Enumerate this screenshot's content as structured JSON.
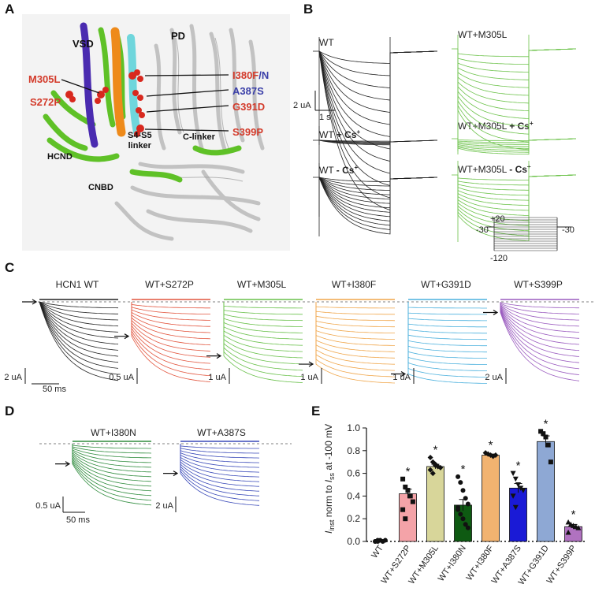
{
  "panels": {
    "A": "A",
    "B": "B",
    "C": "C",
    "D": "D",
    "E": "E"
  },
  "structure": {
    "vsd": "VSD",
    "pd": "PD",
    "hcnd": "HCND",
    "cnbd": "CNBD",
    "c_linker": "C-linker",
    "s4s5_line1": "S4-S5",
    "s4s5_line2": "linker",
    "mutations": {
      "m305l": "M305L",
      "s272p": "S272P",
      "i380": "I380F",
      "i380_slash": "/",
      "i380_n": "N",
      "a387s": "A387S",
      "g391d": "G391D",
      "s399p": "S399P"
    },
    "colors": {
      "helix_green": "#5fc127",
      "s4_orange": "#ee8a1a",
      "s4_cyan": "#6fd6dc",
      "vsd_purple": "#4a2bb0",
      "grey": "#c8c8c8",
      "atoms": "#d8281e"
    }
  },
  "panel_b": {
    "wt": "WT",
    "wt_cs_main": "WT ",
    "wt_cs_ion": "+ Cs",
    "wt_minus_main": "WT ",
    "wt_minus_ion": "- Cs",
    "sup": "+",
    "m305l": "WT+M305L",
    "m305l_cs_main": "WT+M305L ",
    "m305l_cs_ion": "+ Cs",
    "m305l_minus_main": "WT+M305L ",
    "m305l_minus_ion": "- Cs",
    "scale_current": "2 uA",
    "scale_time": "1 s",
    "protocol": {
      "top": "+20",
      "left": "-30",
      "right": "-30",
      "bottom": "-120"
    }
  },
  "panel_c": {
    "traces": [
      {
        "label": "HCN1 WT",
        "color": "#222222",
        "scale": "2 uA",
        "ifrac": 0.0
      },
      {
        "label": "WT+S272P",
        "color": "#e2553e",
        "scale": "0.5 uA",
        "ifrac": 0.42
      },
      {
        "label": "WT+M305L",
        "color": "#69c04a",
        "scale": "1 uA",
        "ifrac": 0.66
      },
      {
        "label": "WT+I380F",
        "color": "#f0a64a",
        "scale": "1 uA",
        "ifrac": 0.76
      },
      {
        "label": "WT+G391D",
        "color": "#4ab0dd",
        "scale": "1 uA",
        "ifrac": 0.88
      },
      {
        "label": "WT+S399P",
        "color": "#9a5bbf",
        "scale": "2 uA",
        "ifrac": 0.13
      }
    ],
    "time_scale": "50 ms"
  },
  "panel_d": {
    "traces": [
      {
        "label": "WT+I380N",
        "color": "#2e8b3c",
        "scale": "0.5 uA",
        "ifrac": 0.32
      },
      {
        "label": "WT+A387S",
        "color": "#3848b8",
        "scale": "2 uA",
        "ifrac": 0.47
      }
    ],
    "time_scale": "50 ms"
  },
  "chart_data": {
    "type": "bar",
    "ylabel_i": "I",
    "ylabel_inst": "inst",
    "ylabel_mid": " norm to ",
    "ylabel_ss": "ss",
    "ylabel_end": " at -100 mV",
    "ylim": [
      0.0,
      1.0
    ],
    "yticks": [
      "0.0",
      "0.2",
      "0.4",
      "0.6",
      "0.8",
      "1.0"
    ],
    "categories": [
      "WT",
      "WT+S272P",
      "WT+M305L",
      "WT+I380N",
      "WT+I380F",
      "WT+A387S",
      "WT+G391D",
      "WT+S399P"
    ],
    "values": [
      0.0,
      0.42,
      0.66,
      0.32,
      0.76,
      0.47,
      0.88,
      0.13
    ],
    "errors": [
      0.0,
      0.04,
      0.02,
      0.05,
      0.01,
      0.04,
      0.05,
      0.02
    ],
    "colors": [
      "#ffffff",
      "#f4a3a8",
      "#d8d69a",
      "#0e5a12",
      "#f2b370",
      "#1a1ad6",
      "#8ea8d4",
      "#b072c0"
    ],
    "significance": [
      "",
      "*",
      "*",
      "*",
      "*",
      "*",
      "*",
      "*"
    ],
    "points": [
      [
        0.0,
        0.0,
        0.01,
        0.0,
        0.01,
        0.0,
        0.01
      ],
      [
        0.55,
        0.48,
        0.45,
        0.4,
        0.35,
        0.28,
        0.2,
        0.45
      ],
      [
        0.74,
        0.7,
        0.68,
        0.66,
        0.65,
        0.63,
        0.6,
        0.67
      ],
      [
        0.57,
        0.52,
        0.45,
        0.38,
        0.33,
        0.3,
        0.24,
        0.2,
        0.15,
        0.12,
        0.28
      ],
      [
        0.78,
        0.77,
        0.76,
        0.75,
        0.76
      ],
      [
        0.6,
        0.55,
        0.5,
        0.47,
        0.45,
        0.4,
        0.3
      ],
      [
        0.97,
        0.95,
        0.92,
        0.85,
        0.7
      ],
      [
        0.17,
        0.15,
        0.14,
        0.13,
        0.12,
        0.08
      ]
    ],
    "point_shapes": [
      "circle",
      "square",
      "diamond",
      "circle",
      "diamond",
      "triangle-down",
      "square",
      "triangle"
    ]
  }
}
